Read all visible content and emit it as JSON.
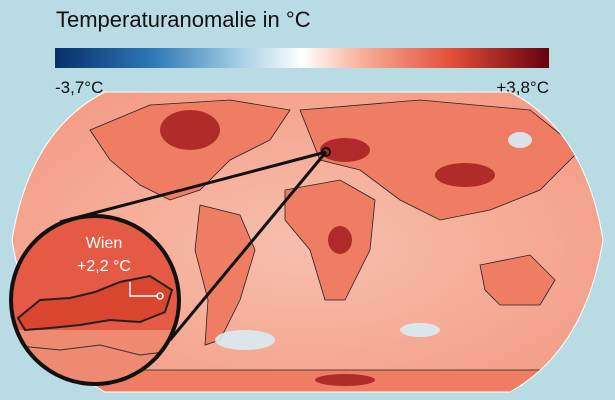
{
  "title": "Temperaturanomalie in °C",
  "legend": {
    "min": "-3,7°C",
    "max": "+3,8°C"
  },
  "inset": {
    "city": "Wien",
    "value": "+2,2 °C"
  }
}
